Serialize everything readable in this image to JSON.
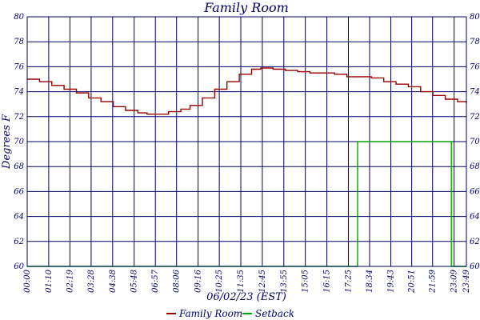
{
  "chart_data": {
    "type": "line",
    "title": "Family Room",
    "xlabel": "06/02/23 (EST)",
    "ylabel": "Degrees F",
    "ylim": [
      60,
      80
    ],
    "yticks": [
      60,
      62,
      64,
      66,
      68,
      70,
      72,
      74,
      76,
      78,
      80
    ],
    "xlim": [
      "00:00",
      "23:49"
    ],
    "xticks": [
      "00:00",
      "01:10",
      "02:19",
      "03:28",
      "04:38",
      "05:48",
      "06:57",
      "08:06",
      "09:16",
      "10:25",
      "11:35",
      "12:45",
      "13:55",
      "15:05",
      "16:15",
      "17:25",
      "18:34",
      "19:43",
      "20:51",
      "21:59",
      "23:09",
      "23:49"
    ],
    "grid": true,
    "legend_position": "bottom",
    "series": [
      {
        "name": "Family Room",
        "color": "#990000",
        "step": true,
        "points": [
          [
            "00:00",
            75.0
          ],
          [
            "00:40",
            74.8
          ],
          [
            "01:20",
            74.5
          ],
          [
            "02:00",
            74.2
          ],
          [
            "02:40",
            73.9
          ],
          [
            "03:20",
            73.5
          ],
          [
            "04:00",
            73.2
          ],
          [
            "04:40",
            72.8
          ],
          [
            "05:20",
            72.5
          ],
          [
            "06:00",
            72.3
          ],
          [
            "06:30",
            72.2
          ],
          [
            "07:10",
            72.2
          ],
          [
            "07:40",
            72.4
          ],
          [
            "08:20",
            72.6
          ],
          [
            "08:50",
            72.9
          ],
          [
            "09:30",
            73.5
          ],
          [
            "10:10",
            74.2
          ],
          [
            "10:50",
            74.8
          ],
          [
            "11:30",
            75.4
          ],
          [
            "12:10",
            75.8
          ],
          [
            "12:40",
            75.9
          ],
          [
            "13:20",
            75.8
          ],
          [
            "14:00",
            75.7
          ],
          [
            "14:40",
            75.6
          ],
          [
            "15:20",
            75.5
          ],
          [
            "16:00",
            75.5
          ],
          [
            "16:40",
            75.4
          ],
          [
            "17:20",
            75.2
          ],
          [
            "18:00",
            75.2
          ],
          [
            "18:40",
            75.1
          ],
          [
            "19:20",
            74.8
          ],
          [
            "20:00",
            74.6
          ],
          [
            "20:40",
            74.4
          ],
          [
            "21:20",
            74.0
          ],
          [
            "22:00",
            73.7
          ],
          [
            "22:40",
            73.4
          ],
          [
            "23:20",
            73.2
          ],
          [
            "23:49",
            73.1
          ]
        ]
      },
      {
        "name": "Setback",
        "color": "#00aa00",
        "step": true,
        "points": [
          [
            "00:00",
            60
          ],
          [
            "17:55",
            60
          ],
          [
            "17:55",
            70
          ],
          [
            "23:00",
            70
          ],
          [
            "23:00",
            60
          ],
          [
            "23:49",
            60
          ]
        ]
      }
    ]
  }
}
